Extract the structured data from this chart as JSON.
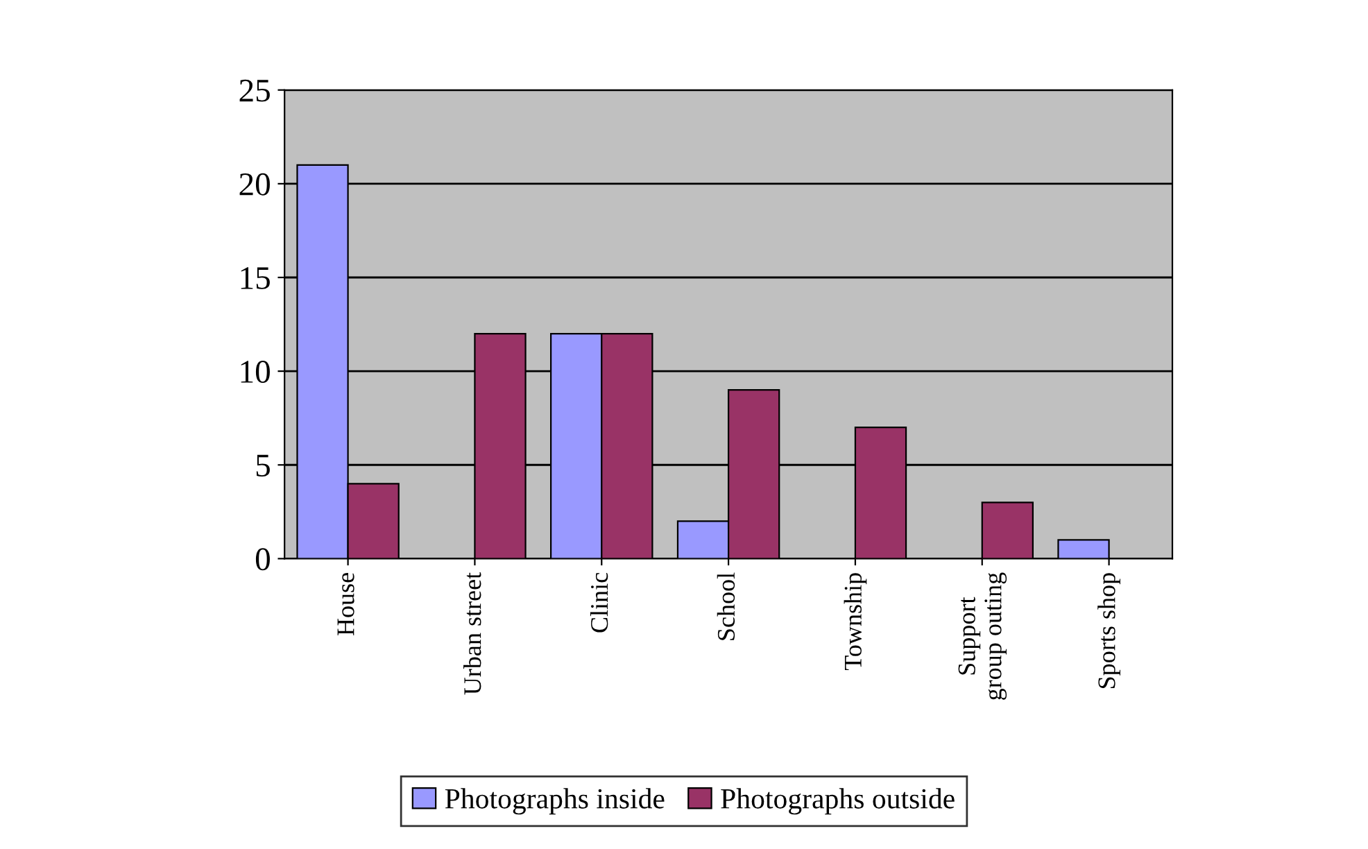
{
  "chart_data": {
    "type": "bar",
    "categories": [
      "House",
      "Urban street",
      "Clinic",
      "School",
      "Township",
      "Support\ngroup outing",
      "Sports shop"
    ],
    "series": [
      {
        "name": "Photographs inside",
        "color": "#9999ff",
        "values": [
          21,
          null,
          12,
          2,
          null,
          null,
          1
        ]
      },
      {
        "name": "Photographs outside",
        "color": "#993366",
        "values": [
          4,
          12,
          12,
          9,
          7,
          3,
          null
        ]
      }
    ],
    "ylim": [
      0,
      25
    ],
    "yticks": [
      0,
      5,
      10,
      15,
      20,
      25
    ],
    "grid": "y",
    "legend": "bottom"
  }
}
